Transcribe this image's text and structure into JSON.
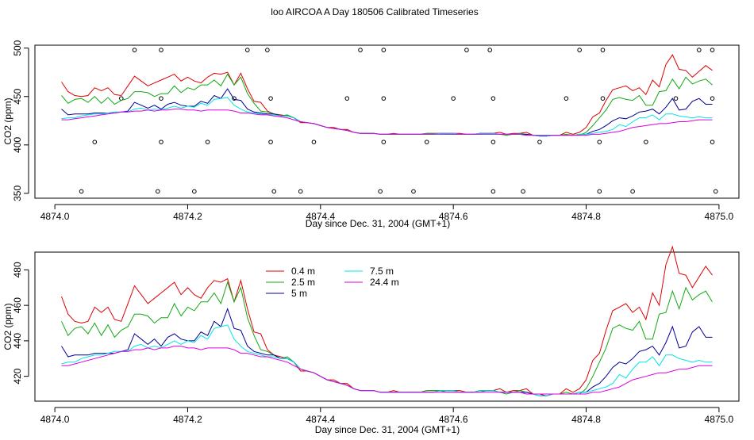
{
  "page_title": "loo AIRCOA A  Day 180506  Calibrated Timeseries",
  "colors": {
    "0.4 m": "#dd0000",
    "2.5 m": "#11aa11",
    "5 m": "#000099",
    "7.5 m": "#00e5e5",
    "24.4 m": "#dd00dd",
    "axis": "#000000"
  },
  "chart_data": [
    {
      "type": "line",
      "xlabel": "Day since Dec. 31, 2004 (GMT+1)",
      "ylabel": "CO2 (ppm)",
      "xlim": [
        4873.97,
        4875.03
      ],
      "ylim": [
        345,
        503
      ],
      "xticks": [
        "4874.0",
        "4874.2",
        "4874.4",
        "4874.6",
        "4874.8",
        "4875.0"
      ],
      "yticks": [
        "350",
        "400",
        "450",
        "500"
      ],
      "grid": false,
      "legend": "none",
      "x": [
        4874.01,
        4874.02,
        4874.03,
        4874.04,
        4874.05,
        4874.06,
        4874.07,
        4874.08,
        4874.09,
        4874.1,
        4874.11,
        4874.12,
        4874.13,
        4874.14,
        4874.15,
        4874.16,
        4874.17,
        4874.18,
        4874.19,
        4874.2,
        4874.21,
        4874.22,
        4874.23,
        4874.24,
        4874.25,
        4874.26,
        4874.27,
        4874.28,
        4874.29,
        4874.3,
        4874.31,
        4874.32,
        4874.33,
        4874.34,
        4874.35,
        4874.36,
        4874.37,
        4874.38,
        4874.39,
        4874.4,
        4874.41,
        4874.42,
        4874.43,
        4874.44,
        4874.45,
        4874.46,
        4874.47,
        4874.48,
        4874.49,
        4874.5,
        4874.51,
        4874.52,
        4874.53,
        4874.54,
        4874.55,
        4874.56,
        4874.57,
        4874.58,
        4874.59,
        4874.6,
        4874.61,
        4874.62,
        4874.63,
        4874.64,
        4874.65,
        4874.66,
        4874.67,
        4874.68,
        4874.69,
        4874.7,
        4874.71,
        4874.72,
        4874.73,
        4874.74,
        4874.75,
        4874.76,
        4874.77,
        4874.78,
        4874.79,
        4874.8,
        4874.81,
        4874.82,
        4874.83,
        4874.84,
        4874.85,
        4874.86,
        4874.87,
        4874.88,
        4874.89,
        4874.9,
        4874.91,
        4874.92,
        4874.93,
        4874.94,
        4874.95,
        4874.96,
        4874.97,
        4874.98,
        4874.99
      ],
      "series": [
        {
          "name": "0.4 m",
          "values": [
            465,
            455,
            451,
            450,
            451,
            459,
            456,
            459,
            452,
            451,
            461,
            471,
            466,
            461,
            464,
            467,
            470,
            473,
            466,
            470,
            466,
            464,
            470,
            474,
            473,
            475,
            462,
            474,
            458,
            445,
            444,
            435,
            432,
            431,
            430,
            428,
            423,
            423,
            422,
            420,
            418,
            418,
            416,
            416,
            413,
            412,
            412,
            412,
            411,
            411,
            412,
            411,
            411,
            411,
            411,
            412,
            412,
            412,
            412,
            412,
            412,
            411,
            411,
            412,
            412,
            412,
            413,
            411,
            412,
            412,
            413,
            410,
            410,
            409,
            410,
            410,
            413,
            411,
            413,
            418,
            429,
            433,
            446,
            457,
            459,
            461,
            456,
            459,
            452,
            467,
            460,
            483,
            493,
            478,
            477,
            470,
            476,
            482,
            477
          ]
        },
        {
          "name": "2.5 m",
          "values": [
            451,
            443,
            447,
            448,
            444,
            450,
            443,
            449,
            442,
            446,
            448,
            455,
            455,
            454,
            450,
            453,
            453,
            461,
            454,
            459,
            457,
            462,
            462,
            467,
            461,
            473,
            462,
            470,
            453,
            443,
            435,
            434,
            432,
            430,
            431,
            428,
            424,
            423,
            422,
            420,
            418,
            417,
            416,
            415,
            413,
            412,
            412,
            412,
            411,
            411,
            411,
            411,
            411,
            411,
            411,
            412,
            412,
            412,
            411,
            411,
            411,
            411,
            411,
            411,
            412,
            412,
            411,
            410,
            411,
            412,
            411,
            410,
            410,
            410,
            410,
            410,
            411,
            410,
            410,
            413,
            420,
            428,
            436,
            447,
            449,
            447,
            446,
            451,
            441,
            441,
            455,
            456,
            468,
            458,
            470,
            463,
            466,
            468,
            462
          ]
        },
        {
          "name": "5 m",
          "values": [
            437,
            431,
            432,
            432,
            432,
            433,
            433,
            433,
            433,
            434,
            435,
            444,
            441,
            438,
            441,
            437,
            442,
            444,
            441,
            440,
            440,
            445,
            443,
            451,
            448,
            458,
            447,
            446,
            437,
            434,
            433,
            432,
            432,
            430,
            430,
            428,
            424,
            423,
            422,
            420,
            418,
            417,
            416,
            415,
            413,
            412,
            412,
            412,
            411,
            411,
            411,
            411,
            411,
            411,
            411,
            411,
            411,
            412,
            412,
            412,
            411,
            411,
            411,
            412,
            412,
            412,
            411,
            411,
            411,
            411,
            411,
            410,
            409,
            409,
            410,
            410,
            410,
            410,
            411,
            411,
            414,
            416,
            420,
            425,
            428,
            427,
            430,
            434,
            435,
            437,
            432,
            439,
            448,
            436,
            437,
            445,
            448,
            442,
            442
          ]
        },
        {
          "name": "7.5 m",
          "values": [
            427,
            428,
            428,
            430,
            431,
            432,
            432,
            433,
            434,
            434,
            434,
            437,
            438,
            436,
            437,
            436,
            438,
            440,
            438,
            440,
            439,
            443,
            441,
            447,
            448,
            449,
            441,
            437,
            434,
            433,
            432,
            431,
            431,
            430,
            430,
            428,
            424,
            423,
            422,
            420,
            418,
            417,
            416,
            415,
            413,
            412,
            412,
            412,
            411,
            411,
            411,
            411,
            411,
            411,
            411,
            411,
            411,
            412,
            412,
            412,
            411,
            411,
            411,
            412,
            412,
            412,
            411,
            411,
            411,
            411,
            410,
            410,
            409,
            409,
            410,
            410,
            410,
            410,
            411,
            411,
            412,
            413,
            414,
            416,
            421,
            419,
            424,
            428,
            428,
            431,
            426,
            432,
            432,
            430,
            429,
            428,
            429,
            428,
            428
          ]
        },
        {
          "name": "24.4 m",
          "values": [
            426,
            426,
            427,
            428,
            429,
            430,
            431,
            432,
            433,
            434,
            434,
            435,
            435,
            436,
            435,
            436,
            436,
            437,
            437,
            436,
            436,
            435,
            436,
            436,
            436,
            436,
            435,
            433,
            433,
            432,
            431,
            431,
            430,
            429,
            428,
            426,
            424,
            423,
            422,
            420,
            418,
            417,
            416,
            415,
            413,
            412,
            412,
            412,
            411,
            411,
            411,
            411,
            411,
            411,
            411,
            411,
            411,
            411,
            411,
            411,
            411,
            411,
            411,
            411,
            411,
            411,
            411,
            411,
            411,
            411,
            410,
            410,
            410,
            410,
            410,
            410,
            410,
            410,
            410,
            410,
            411,
            411,
            412,
            413,
            414,
            416,
            418,
            419,
            420,
            421,
            422,
            422,
            423,
            424,
            424,
            425,
            426,
            426,
            426
          ]
        }
      ],
      "outlier_points": [
        {
          "x": 4874.04,
          "y": 352
        },
        {
          "x": 4874.06,
          "y": 403
        },
        {
          "x": 4874.1,
          "y": 448
        },
        {
          "x": 4874.12,
          "y": 498
        },
        {
          "x": 4874.16,
          "y": 498
        },
        {
          "x": 4874.155,
          "y": 352
        },
        {
          "x": 4874.16,
          "y": 448
        },
        {
          "x": 4874.16,
          "y": 403
        },
        {
          "x": 4874.21,
          "y": 352
        },
        {
          "x": 4874.23,
          "y": 403
        },
        {
          "x": 4874.27,
          "y": 448
        },
        {
          "x": 4874.29,
          "y": 498
        },
        {
          "x": 4874.32,
          "y": 498
        },
        {
          "x": 4874.325,
          "y": 448
        },
        {
          "x": 4874.325,
          "y": 403
        },
        {
          "x": 4874.33,
          "y": 352
        },
        {
          "x": 4874.37,
          "y": 352
        },
        {
          "x": 4874.39,
          "y": 403
        },
        {
          "x": 4874.44,
          "y": 448
        },
        {
          "x": 4874.46,
          "y": 498
        },
        {
          "x": 4874.49,
          "y": 352
        },
        {
          "x": 4874.495,
          "y": 403
        },
        {
          "x": 4874.495,
          "y": 448
        },
        {
          "x": 4874.495,
          "y": 498
        },
        {
          "x": 4874.54,
          "y": 352
        },
        {
          "x": 4874.56,
          "y": 403
        },
        {
          "x": 4874.6,
          "y": 448
        },
        {
          "x": 4874.62,
          "y": 498
        },
        {
          "x": 4874.655,
          "y": 498
        },
        {
          "x": 4874.66,
          "y": 448
        },
        {
          "x": 4874.66,
          "y": 403
        },
        {
          "x": 4874.66,
          "y": 352
        },
        {
          "x": 4874.705,
          "y": 352
        },
        {
          "x": 4874.73,
          "y": 403
        },
        {
          "x": 4874.77,
          "y": 448
        },
        {
          "x": 4874.79,
          "y": 498
        },
        {
          "x": 4874.82,
          "y": 352
        },
        {
          "x": 4874.82,
          "y": 403
        },
        {
          "x": 4874.825,
          "y": 448
        },
        {
          "x": 4874.825,
          "y": 498
        },
        {
          "x": 4874.87,
          "y": 352
        },
        {
          "x": 4874.89,
          "y": 403
        },
        {
          "x": 4874.935,
          "y": 448
        },
        {
          "x": 4874.97,
          "y": 498
        },
        {
          "x": 4874.99,
          "y": 448
        },
        {
          "x": 4874.99,
          "y": 498
        },
        {
          "x": 4874.99,
          "y": 403
        },
        {
          "x": 4874.995,
          "y": 352
        }
      ]
    },
    {
      "type": "line",
      "xlabel": "Day since Dec. 31, 2004 (GMT+1)",
      "ylabel": "CO2 (ppm)",
      "xlim": [
        4873.97,
        4875.03
      ],
      "ylim": [
        406,
        490
      ],
      "xticks": [
        "4874.0",
        "4874.2",
        "4874.4",
        "4874.6",
        "4874.8",
        "4875.0"
      ],
      "yticks": [
        "420",
        "440",
        "460",
        "480"
      ],
      "grid": false,
      "legend": "top-left",
      "legend_entries": [
        "0.4 m",
        "2.5 m",
        "5 m",
        "7.5 m",
        "24.4 m"
      ],
      "uses_series_of_chart": 0
    }
  ]
}
